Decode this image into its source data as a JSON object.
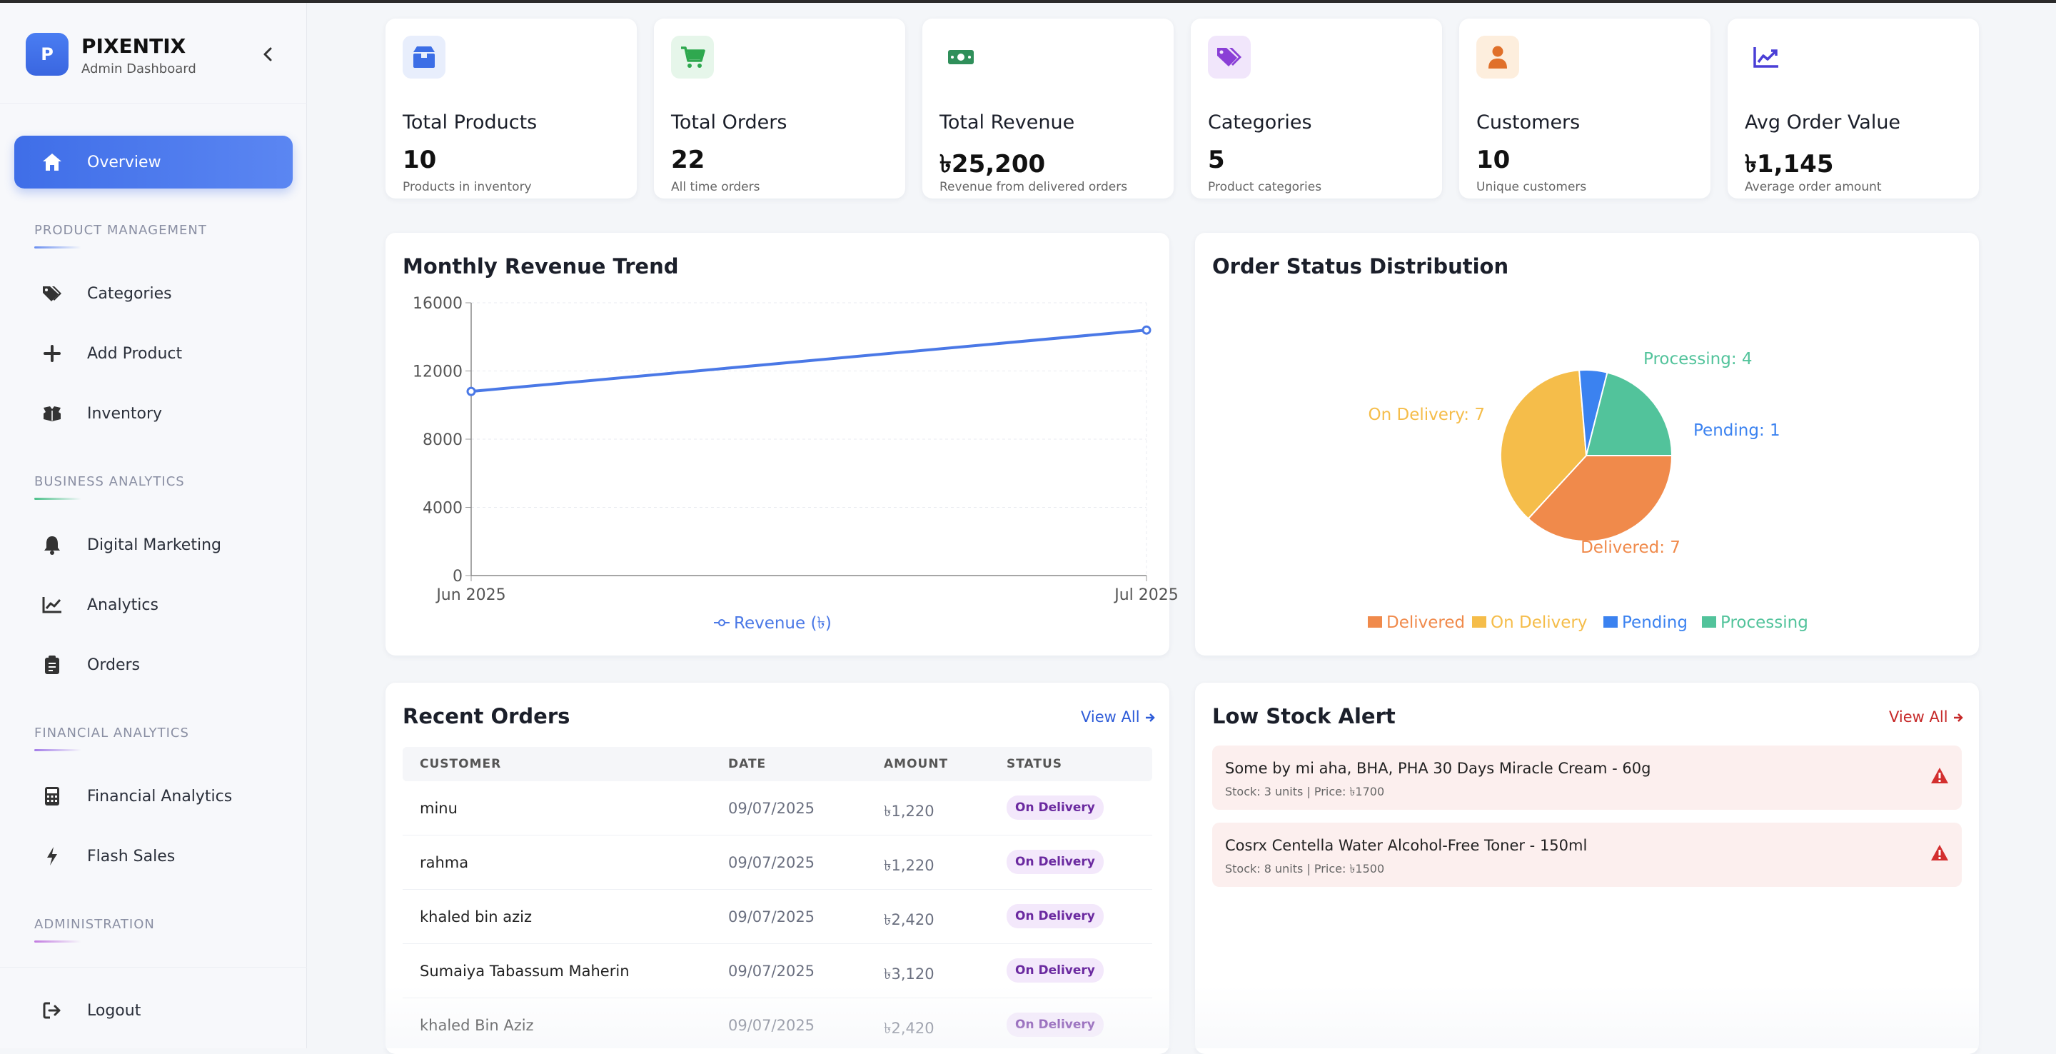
{
  "brand": {
    "logo_letter": "P",
    "name": "PIXENTIX",
    "subtitle": "Admin Dashboard"
  },
  "sidebar": {
    "overview": "Overview",
    "sections": [
      {
        "title": "PRODUCT MANAGEMENT",
        "accent": "#6b8ff0",
        "items": [
          "Categories",
          "Add Product",
          "Inventory"
        ]
      },
      {
        "title": "BUSINESS ANALYTICS",
        "accent": "#4cc08a",
        "items": [
          "Digital Marketing",
          "Analytics",
          "Orders"
        ]
      },
      {
        "title": "FINANCIAL ANALYTICS",
        "accent": "#a37de8",
        "items": [
          "Financial Analytics",
          "Flash Sales"
        ]
      },
      {
        "title": "ADMINISTRATION",
        "accent": "#c27be0",
        "items": []
      }
    ],
    "logout": "Logout"
  },
  "stats": [
    {
      "title": "Total Products",
      "value": "10",
      "sub": "Products in inventory",
      "icon": "box-icon",
      "bg": "#e8eefc",
      "color": "#3c6ee6"
    },
    {
      "title": "Total Orders",
      "value": "22",
      "sub": "All time orders",
      "icon": "cart-icon",
      "bg": "#e6f6ea",
      "color": "#2fa84f"
    },
    {
      "title": "Total Revenue",
      "value": "৳25,200",
      "sub": "Revenue from delivered orders",
      "icon": "money-icon",
      "bg": "#ffffff",
      "color": "#2f8f5a"
    },
    {
      "title": "Categories",
      "value": "5",
      "sub": "Product categories",
      "icon": "tags-icon",
      "bg": "#f1e6fb",
      "color": "#8a3fd6"
    },
    {
      "title": "Customers",
      "value": "10",
      "sub": "Unique customers",
      "icon": "user-icon",
      "bg": "#fdeedd",
      "color": "#e0702a"
    },
    {
      "title": "Avg Order Value",
      "value": "৳1,145",
      "sub": "Average order amount",
      "icon": "chart-line-icon",
      "bg": "#ffffff",
      "color": "#4a3fd6"
    }
  ],
  "revenue_chart": {
    "title": "Monthly Revenue Trend",
    "chart_data": {
      "type": "line",
      "x": [
        "Jun 2025",
        "Jul 2025"
      ],
      "series": [
        {
          "name": "Revenue (৳)",
          "values": [
            10800,
            14400
          ],
          "color": "#4a78e6"
        }
      ],
      "yticks": [
        "0",
        "4000",
        "8000",
        "12000",
        "16000"
      ],
      "ylim": [
        0,
        16000
      ],
      "grid": true,
      "legend": "bottom"
    }
  },
  "status_chart": {
    "title": "Order Status Distribution",
    "chart_data": {
      "type": "pie",
      "labels": [
        "Delivered",
        "On Delivery",
        "Pending",
        "Processing"
      ],
      "values": [
        7,
        7,
        1,
        4
      ],
      "slice_labels": [
        "Delivered: 7",
        "On Delivery: 7",
        "Pending: 1",
        "Processing: 4"
      ],
      "colors": [
        "#f08a4b",
        "#f5bd4a",
        "#3b82f0",
        "#52c39b"
      ],
      "legend": "bottom"
    }
  },
  "recent_orders": {
    "title": "Recent Orders",
    "view_all": "View All",
    "columns": [
      "CUSTOMER",
      "DATE",
      "AMOUNT",
      "STATUS"
    ],
    "rows": [
      {
        "customer": "minu",
        "date": "09/07/2025",
        "amount": "৳1,220",
        "status": "On Delivery"
      },
      {
        "customer": "rahma",
        "date": "09/07/2025",
        "amount": "৳1,220",
        "status": "On Delivery"
      },
      {
        "customer": "khaled bin aziz",
        "date": "09/07/2025",
        "amount": "৳2,420",
        "status": "On Delivery"
      },
      {
        "customer": "Sumaiya Tabassum Maherin",
        "date": "09/07/2025",
        "amount": "৳3,120",
        "status": "On Delivery"
      },
      {
        "customer": "khaled Bin Aziz",
        "date": "09/07/2025",
        "amount": "৳2,420",
        "status": "On Delivery"
      }
    ]
  },
  "low_stock": {
    "title": "Low Stock Alert",
    "view_all": "View All",
    "items": [
      {
        "name": "Some by mi aha, BHA, PHA 30 Days Miracle Cream - 60g",
        "meta": "Stock: 3 units | Price: ৳1700"
      },
      {
        "name": "Cosrx Centella Water Alcohol-Free Toner - 150ml",
        "meta": "Stock: 8 units | Price: ৳1500"
      }
    ]
  }
}
